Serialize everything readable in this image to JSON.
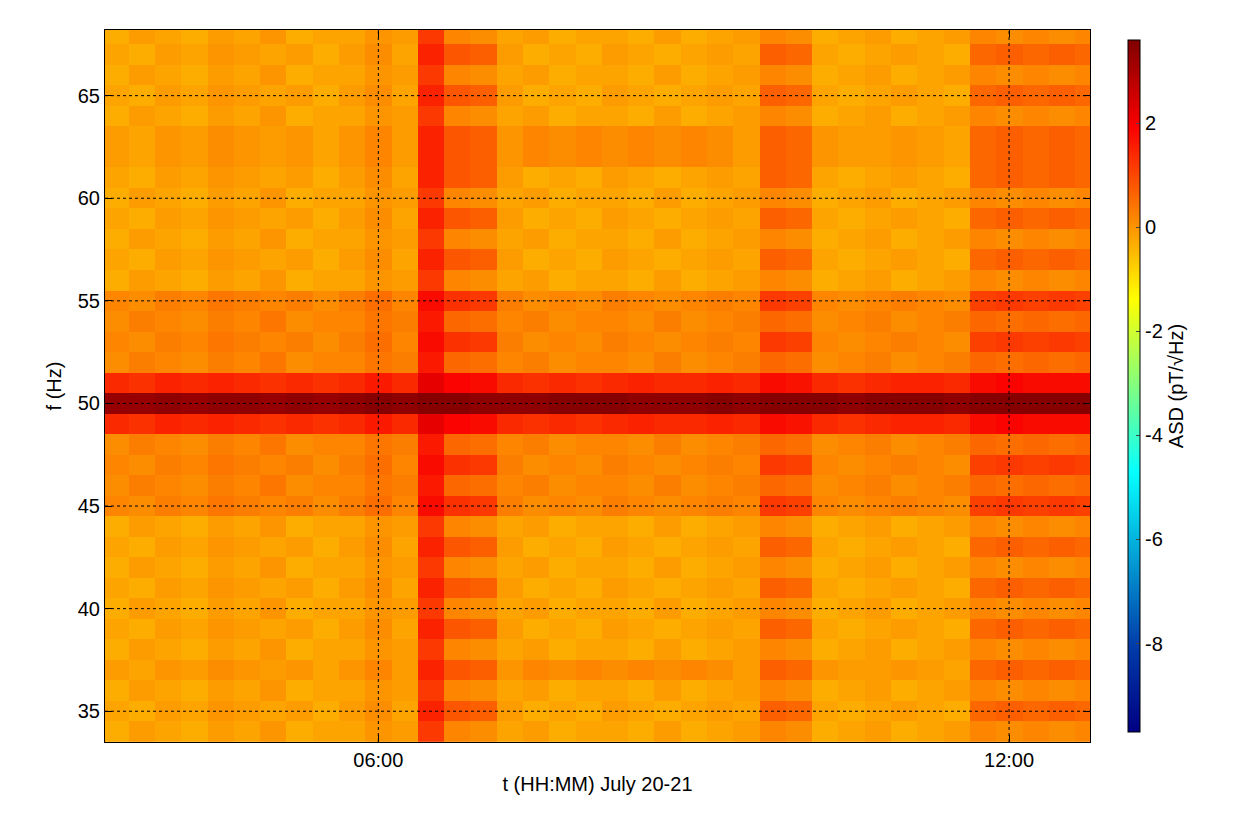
{
  "chart_data": {
    "type": "heatmap",
    "x_label": "t (HH:MM) July 20-21",
    "y_label": "f (Hz)",
    "colorbar_title": "ASD (pT/√Hz)",
    "zlim": [
      -9.7,
      3.6
    ],
    "zticks": [
      -8,
      -6,
      -4,
      -2,
      0,
      2
    ],
    "xlim": [
      3.4,
      12.77
    ],
    "xticks": [
      {
        "value": 6,
        "label": "06:00"
      },
      {
        "value": 12,
        "label": "12:00"
      }
    ],
    "ylim": [
      33.5,
      68.2
    ],
    "yticks": [
      35,
      40,
      45,
      50,
      55,
      60,
      65
    ],
    "grid": true,
    "x": [
      3.5,
      3.75,
      4.0,
      4.25,
      4.5,
      4.75,
      5.0,
      5.25,
      5.5,
      5.75,
      6.0,
      6.25,
      6.5,
      6.75,
      7.0,
      7.25,
      7.5,
      7.75,
      8.0,
      8.25,
      8.5,
      8.75,
      9.0,
      9.25,
      9.5,
      9.75,
      10.0,
      10.25,
      10.5,
      10.75,
      11.0,
      11.25,
      11.5,
      11.75,
      12.0,
      12.25,
      12.5,
      12.75
    ],
    "y": [
      34,
      35,
      36,
      37,
      38,
      39,
      40,
      41,
      42,
      43,
      44,
      45,
      46,
      47,
      48,
      49,
      50,
      51,
      52,
      53,
      54,
      55,
      56,
      57,
      58,
      59,
      60,
      61,
      62,
      63,
      64,
      65,
      66,
      67,
      68
    ],
    "z": [
      [
        -0.3,
        -0.1,
        -0.2,
        -0.3,
        -0.1,
        -0.2,
        0.0,
        -0.3,
        -0.2,
        -0.2,
        0.0,
        -0.1,
        1.2,
        0.2,
        0.1,
        -0.2,
        -0.1,
        -0.3,
        -0.2,
        -0.2,
        -0.3,
        -0.1,
        -0.3,
        -0.2,
        -0.1,
        0.2,
        0.1,
        -0.3,
        -0.2,
        -0.1,
        -0.3,
        -0.2,
        -0.1,
        0.2,
        0.1,
        0.2,
        0.1,
        0.2
      ],
      [
        -0.2,
        -0.3,
        -0.1,
        -0.2,
        0.0,
        -0.1,
        -0.2,
        -0.1,
        -0.3,
        -0.1,
        0.1,
        -0.2,
        1.5,
        0.8,
        0.7,
        -0.1,
        -0.3,
        -0.2,
        -0.3,
        -0.1,
        -0.2,
        -0.3,
        -0.2,
        -0.1,
        -0.2,
        0.7,
        0.6,
        -0.2,
        -0.3,
        -0.2,
        -0.1,
        -0.2,
        -0.3,
        0.6,
        0.7,
        0.6,
        0.7,
        0.6
      ],
      [
        -0.3,
        -0.1,
        -0.2,
        -0.3,
        -0.1,
        -0.2,
        0.0,
        -0.3,
        -0.2,
        -0.2,
        0.0,
        -0.1,
        1.2,
        0.2,
        0.1,
        -0.2,
        -0.1,
        -0.3,
        -0.2,
        -0.2,
        -0.3,
        -0.1,
        -0.3,
        -0.2,
        -0.1,
        0.2,
        0.1,
        -0.3,
        -0.2,
        -0.1,
        -0.3,
        -0.2,
        -0.1,
        0.2,
        0.1,
        0.2,
        0.1,
        0.2
      ],
      [
        -0.1,
        -0.2,
        0.0,
        -0.1,
        0.1,
        0.0,
        -0.1,
        0.0,
        -0.2,
        0.0,
        0.2,
        -0.1,
        1.5,
        0.8,
        0.7,
        0.0,
        0.2,
        0.1,
        0.2,
        0.1,
        0.2,
        0.1,
        0.2,
        0.1,
        -0.1,
        0.7,
        0.6,
        0.0,
        -0.1,
        -0.1,
        0.0,
        -0.1,
        -0.2,
        0.6,
        0.7,
        0.6,
        0.7,
        0.6
      ],
      [
        -0.3,
        -0.1,
        -0.2,
        -0.3,
        -0.1,
        -0.2,
        0.0,
        -0.3,
        -0.2,
        -0.2,
        0.0,
        -0.1,
        1.2,
        0.2,
        0.1,
        -0.2,
        -0.1,
        -0.3,
        -0.2,
        -0.2,
        -0.3,
        -0.1,
        -0.3,
        -0.2,
        -0.1,
        0.2,
        0.1,
        -0.3,
        -0.2,
        -0.1,
        -0.3,
        -0.2,
        -0.1,
        0.2,
        0.1,
        0.2,
        0.1,
        0.2
      ],
      [
        -0.2,
        -0.3,
        -0.1,
        -0.2,
        0.0,
        -0.1,
        -0.2,
        -0.1,
        -0.3,
        -0.1,
        0.1,
        -0.2,
        1.5,
        0.8,
        0.7,
        -0.1,
        -0.3,
        -0.2,
        -0.3,
        -0.1,
        -0.2,
        -0.3,
        -0.2,
        -0.1,
        -0.2,
        0.7,
        0.6,
        -0.2,
        -0.3,
        -0.2,
        -0.1,
        -0.2,
        -0.3,
        0.6,
        0.7,
        0.6,
        0.7,
        0.6
      ],
      [
        -0.3,
        -0.1,
        -0.2,
        -0.3,
        -0.1,
        -0.2,
        0.0,
        -0.3,
        -0.2,
        -0.2,
        0.0,
        -0.1,
        1.2,
        0.2,
        0.1,
        -0.2,
        -0.1,
        -0.3,
        -0.2,
        -0.2,
        -0.3,
        -0.1,
        -0.3,
        -0.2,
        -0.1,
        0.2,
        0.1,
        -0.3,
        -0.2,
        -0.1,
        -0.3,
        -0.2,
        -0.1,
        0.2,
        0.1,
        0.2,
        0.1,
        0.2
      ],
      [
        -0.2,
        -0.3,
        -0.1,
        -0.2,
        0.0,
        -0.1,
        -0.2,
        -0.1,
        -0.3,
        -0.1,
        0.1,
        -0.2,
        1.5,
        0.8,
        0.7,
        -0.1,
        -0.3,
        -0.2,
        -0.3,
        -0.1,
        -0.2,
        -0.3,
        -0.2,
        -0.1,
        -0.2,
        0.7,
        0.6,
        -0.2,
        -0.3,
        -0.2,
        -0.1,
        -0.2,
        -0.3,
        0.6,
        0.7,
        0.6,
        0.7,
        0.6
      ],
      [
        -0.3,
        -0.1,
        -0.2,
        -0.3,
        -0.1,
        -0.2,
        0.0,
        -0.3,
        -0.2,
        -0.2,
        0.0,
        -0.1,
        1.2,
        0.2,
        0.1,
        -0.2,
        -0.1,
        -0.3,
        -0.2,
        -0.2,
        -0.3,
        -0.1,
        -0.3,
        -0.2,
        -0.1,
        0.2,
        0.1,
        -0.3,
        -0.2,
        -0.1,
        -0.3,
        -0.2,
        -0.1,
        0.2,
        0.1,
        0.2,
        0.1,
        0.2
      ],
      [
        -0.2,
        -0.3,
        -0.1,
        -0.2,
        0.0,
        -0.1,
        -0.2,
        -0.1,
        -0.3,
        -0.1,
        0.1,
        -0.2,
        1.5,
        0.8,
        0.7,
        -0.1,
        -0.3,
        -0.2,
        -0.3,
        -0.1,
        -0.2,
        -0.3,
        -0.2,
        -0.1,
        -0.2,
        0.7,
        0.6,
        -0.2,
        -0.3,
        -0.2,
        -0.1,
        -0.2,
        -0.3,
        0.6,
        0.7,
        0.6,
        0.7,
        0.6
      ],
      [
        -0.3,
        -0.1,
        -0.2,
        -0.3,
        -0.1,
        -0.2,
        0.0,
        -0.3,
        -0.2,
        -0.2,
        0.0,
        -0.1,
        1.2,
        0.2,
        0.1,
        -0.2,
        -0.1,
        -0.3,
        -0.2,
        -0.2,
        -0.3,
        -0.1,
        -0.3,
        -0.2,
        -0.1,
        0.2,
        0.1,
        -0.3,
        -0.2,
        -0.1,
        -0.3,
        -0.2,
        -0.1,
        0.2,
        0.1,
        0.2,
        0.1,
        0.2
      ],
      [
        0.2,
        0.1,
        0.3,
        0.2,
        0.4,
        0.3,
        0.2,
        0.3,
        0.1,
        0.3,
        0.5,
        0.2,
        1.8,
        1.3,
        1.2,
        0.3,
        0.1,
        0.2,
        0.1,
        0.3,
        0.2,
        0.1,
        0.2,
        0.3,
        0.2,
        1.2,
        1.1,
        0.2,
        0.1,
        0.2,
        0.3,
        0.2,
        0.1,
        1.1,
        1.2,
        1.1,
        1.2,
        1.1
      ],
      [
        0.1,
        0.3,
        0.2,
        0.1,
        0.3,
        0.2,
        0.4,
        0.1,
        0.2,
        0.2,
        0.4,
        0.3,
        1.6,
        0.6,
        0.5,
        0.2,
        0.3,
        0.1,
        0.2,
        0.2,
        0.1,
        0.3,
        0.1,
        0.2,
        0.3,
        0.6,
        0.5,
        0.1,
        0.2,
        0.3,
        0.1,
        0.2,
        0.3,
        0.6,
        0.5,
        0.6,
        0.5,
        0.6
      ],
      [
        0.2,
        0.1,
        0.3,
        0.2,
        0.4,
        0.3,
        0.2,
        0.3,
        0.1,
        0.3,
        0.5,
        0.2,
        1.8,
        1.3,
        1.2,
        0.3,
        0.1,
        0.2,
        0.1,
        0.3,
        0.2,
        0.1,
        0.2,
        0.3,
        0.2,
        1.2,
        1.1,
        0.2,
        0.1,
        0.2,
        0.3,
        0.2,
        0.1,
        1.1,
        1.2,
        1.1,
        1.2,
        1.1
      ],
      [
        0.1,
        0.3,
        0.2,
        0.1,
        0.3,
        0.2,
        0.4,
        0.1,
        0.2,
        0.2,
        0.4,
        0.3,
        1.6,
        0.6,
        0.5,
        0.2,
        0.3,
        0.1,
        0.2,
        0.2,
        0.1,
        0.3,
        0.1,
        0.2,
        0.3,
        0.6,
        0.5,
        0.1,
        0.2,
        0.3,
        0.1,
        0.2,
        0.3,
        0.6,
        0.5,
        0.6,
        0.5,
        0.6
      ],
      [
        1.4,
        1.3,
        1.5,
        1.4,
        1.5,
        1.4,
        1.3,
        1.4,
        1.3,
        1.4,
        1.6,
        1.4,
        2.2,
        1.9,
        1.8,
        1.4,
        1.3,
        1.4,
        1.3,
        1.4,
        1.5,
        1.4,
        1.4,
        1.5,
        1.4,
        1.8,
        1.7,
        1.4,
        1.3,
        1.4,
        1.5,
        1.5,
        1.4,
        1.8,
        1.9,
        1.8,
        1.8,
        1.8
      ],
      [
        3.3,
        3.3,
        3.4,
        3.3,
        3.4,
        3.4,
        3.3,
        3.4,
        3.3,
        3.4,
        3.5,
        3.4,
        3.5,
        3.5,
        3.4,
        3.4,
        3.4,
        3.5,
        3.5,
        3.5,
        3.4,
        3.4,
        3.4,
        3.5,
        3.4,
        3.5,
        3.5,
        3.5,
        3.4,
        3.5,
        3.5,
        3.5,
        3.4,
        3.5,
        3.5,
        3.5,
        3.5,
        3.5
      ],
      [
        1.4,
        1.3,
        1.5,
        1.4,
        1.5,
        1.4,
        1.3,
        1.4,
        1.3,
        1.4,
        1.6,
        1.4,
        2.2,
        1.9,
        1.8,
        1.4,
        1.3,
        1.4,
        1.3,
        1.4,
        1.5,
        1.4,
        1.4,
        1.5,
        1.4,
        1.8,
        1.7,
        1.4,
        1.3,
        1.4,
        1.5,
        1.5,
        1.4,
        1.8,
        1.9,
        1.8,
        1.8,
        1.8
      ],
      [
        0.1,
        0.3,
        0.2,
        0.1,
        0.3,
        0.2,
        0.4,
        0.1,
        0.2,
        0.2,
        0.4,
        0.3,
        1.6,
        0.6,
        0.5,
        0.2,
        0.3,
        0.1,
        0.2,
        0.2,
        0.1,
        0.3,
        0.1,
        0.2,
        0.3,
        0.6,
        0.5,
        0.1,
        0.2,
        0.3,
        0.1,
        0.2,
        0.3,
        0.6,
        0.5,
        0.6,
        0.5,
        0.6
      ],
      [
        0.2,
        0.1,
        0.3,
        0.2,
        0.4,
        0.3,
        0.2,
        0.3,
        0.1,
        0.3,
        0.5,
        0.2,
        1.8,
        1.3,
        1.2,
        0.3,
        0.1,
        0.2,
        0.1,
        0.3,
        0.2,
        0.1,
        0.2,
        0.3,
        0.2,
        1.2,
        1.1,
        0.2,
        0.1,
        0.2,
        0.3,
        0.2,
        0.1,
        1.1,
        1.2,
        1.1,
        1.2,
        1.1
      ],
      [
        0.1,
        0.3,
        0.2,
        0.1,
        0.3,
        0.2,
        0.4,
        0.1,
        0.2,
        0.2,
        0.4,
        0.3,
        1.6,
        0.6,
        0.5,
        0.2,
        0.3,
        0.1,
        0.2,
        0.2,
        0.1,
        0.3,
        0.1,
        0.2,
        0.3,
        0.6,
        0.5,
        0.1,
        0.2,
        0.3,
        0.1,
        0.2,
        0.3,
        0.6,
        0.5,
        0.6,
        0.5,
        0.6
      ],
      [
        0.2,
        0.1,
        0.3,
        0.2,
        0.4,
        0.3,
        0.2,
        0.3,
        0.1,
        0.3,
        0.5,
        0.2,
        1.8,
        1.3,
        1.2,
        0.3,
        0.1,
        0.2,
        0.1,
        0.3,
        0.2,
        0.1,
        0.2,
        0.3,
        0.2,
        1.2,
        1.1,
        0.2,
        0.1,
        0.2,
        0.3,
        0.2,
        0.1,
        1.1,
        1.2,
        1.1,
        1.2,
        1.1
      ],
      [
        -0.3,
        -0.1,
        -0.2,
        -0.3,
        -0.1,
        -0.2,
        0.0,
        -0.3,
        -0.2,
        -0.2,
        0.0,
        -0.1,
        1.2,
        0.2,
        0.1,
        -0.2,
        -0.1,
        -0.3,
        -0.2,
        -0.2,
        -0.3,
        -0.1,
        -0.3,
        -0.2,
        -0.1,
        0.2,
        0.1,
        -0.3,
        -0.2,
        -0.1,
        -0.3,
        -0.2,
        -0.1,
        0.2,
        0.1,
        0.2,
        0.1,
        0.2
      ],
      [
        -0.2,
        -0.3,
        -0.1,
        -0.2,
        0.0,
        -0.1,
        -0.2,
        -0.1,
        -0.3,
        -0.1,
        0.1,
        -0.2,
        1.5,
        0.8,
        0.7,
        -0.1,
        -0.3,
        -0.2,
        -0.3,
        -0.1,
        -0.2,
        -0.3,
        -0.2,
        -0.1,
        -0.2,
        0.7,
        0.6,
        -0.2,
        -0.3,
        -0.2,
        -0.1,
        -0.2,
        -0.3,
        0.6,
        0.7,
        0.6,
        0.7,
        0.6
      ],
      [
        -0.3,
        -0.1,
        -0.2,
        -0.3,
        -0.1,
        -0.2,
        0.0,
        -0.3,
        -0.2,
        -0.2,
        0.0,
        -0.1,
        1.2,
        0.2,
        0.1,
        -0.2,
        -0.1,
        -0.3,
        -0.2,
        -0.2,
        -0.3,
        -0.1,
        -0.3,
        -0.2,
        -0.1,
        0.2,
        0.1,
        -0.3,
        -0.2,
        -0.1,
        -0.3,
        -0.2,
        -0.1,
        0.2,
        0.1,
        0.2,
        0.1,
        0.2
      ],
      [
        -0.2,
        -0.3,
        -0.1,
        -0.2,
        0.0,
        -0.1,
        -0.2,
        -0.1,
        -0.3,
        -0.1,
        0.1,
        -0.2,
        1.5,
        0.8,
        0.7,
        -0.1,
        -0.3,
        -0.2,
        -0.3,
        -0.1,
        -0.2,
        -0.3,
        -0.2,
        -0.1,
        -0.2,
        0.7,
        0.6,
        -0.2,
        -0.3,
        -0.2,
        -0.1,
        -0.2,
        -0.3,
        0.6,
        0.7,
        0.6,
        0.7,
        0.6
      ],
      [
        -0.3,
        -0.1,
        -0.2,
        -0.3,
        -0.1,
        -0.2,
        0.0,
        -0.3,
        -0.2,
        -0.2,
        0.0,
        -0.1,
        1.2,
        0.2,
        0.1,
        -0.2,
        -0.1,
        -0.3,
        -0.2,
        -0.2,
        -0.3,
        -0.1,
        -0.3,
        -0.2,
        -0.1,
        0.2,
        0.1,
        -0.3,
        -0.2,
        -0.1,
        -0.3,
        -0.2,
        -0.1,
        0.2,
        0.1,
        0.2,
        0.1,
        0.2
      ],
      [
        -0.2,
        -0.3,
        -0.1,
        -0.2,
        0.0,
        -0.1,
        -0.2,
        -0.1,
        -0.3,
        -0.1,
        0.1,
        -0.2,
        1.5,
        0.8,
        0.7,
        -0.1,
        -0.3,
        -0.2,
        -0.3,
        -0.1,
        -0.2,
        -0.3,
        -0.2,
        -0.1,
        -0.2,
        0.7,
        0.6,
        -0.2,
        -0.3,
        -0.2,
        -0.1,
        -0.2,
        -0.3,
        0.6,
        0.7,
        0.6,
        0.7,
        0.6
      ],
      [
        -0.1,
        -0.2,
        0.0,
        -0.1,
        0.1,
        0.0,
        -0.1,
        0.0,
        -0.2,
        0.0,
        0.2,
        -0.1,
        1.5,
        0.8,
        0.7,
        0.0,
        0.2,
        0.1,
        0.2,
        0.1,
        0.2,
        0.1,
        0.2,
        0.1,
        -0.1,
        0.7,
        0.6,
        0.0,
        -0.1,
        -0.1,
        0.0,
        -0.1,
        -0.2,
        0.6,
        0.7,
        0.6,
        0.7,
        0.6
      ],
      [
        -0.1,
        -0.2,
        0.0,
        -0.1,
        0.1,
        0.0,
        -0.1,
        0.0,
        -0.2,
        0.0,
        0.2,
        -0.1,
        1.5,
        0.8,
        0.7,
        0.0,
        0.2,
        0.1,
        0.2,
        0.1,
        0.2,
        0.1,
        0.2,
        0.1,
        -0.1,
        0.7,
        0.6,
        0.0,
        -0.1,
        -0.1,
        0.0,
        -0.1,
        -0.2,
        0.6,
        0.7,
        0.6,
        0.7,
        0.6
      ],
      [
        -0.3,
        -0.1,
        -0.2,
        -0.3,
        -0.1,
        -0.2,
        0.0,
        -0.3,
        -0.2,
        -0.2,
        0.0,
        -0.1,
        1.2,
        0.2,
        0.1,
        -0.2,
        -0.1,
        -0.3,
        -0.2,
        -0.2,
        -0.3,
        -0.1,
        -0.3,
        -0.2,
        -0.1,
        0.2,
        0.1,
        -0.3,
        -0.2,
        -0.1,
        -0.3,
        -0.2,
        -0.1,
        0.2,
        0.1,
        0.2,
        0.1,
        0.2
      ],
      [
        -0.2,
        -0.3,
        -0.1,
        -0.2,
        0.0,
        -0.1,
        -0.2,
        -0.1,
        -0.3,
        -0.1,
        0.1,
        -0.2,
        1.5,
        0.8,
        0.7,
        -0.1,
        -0.3,
        -0.2,
        -0.3,
        -0.1,
        -0.2,
        -0.3,
        -0.2,
        -0.1,
        -0.2,
        0.7,
        0.6,
        -0.2,
        -0.3,
        -0.2,
        -0.1,
        -0.2,
        -0.3,
        0.6,
        0.7,
        0.6,
        0.7,
        0.6
      ],
      [
        -0.3,
        -0.1,
        -0.2,
        -0.3,
        -0.1,
        -0.2,
        0.0,
        -0.3,
        -0.2,
        -0.2,
        0.0,
        -0.1,
        1.2,
        0.2,
        0.1,
        -0.2,
        -0.1,
        -0.3,
        -0.2,
        -0.2,
        -0.3,
        -0.1,
        -0.3,
        -0.2,
        -0.1,
        0.2,
        0.1,
        -0.3,
        -0.2,
        -0.1,
        -0.3,
        -0.2,
        -0.1,
        0.2,
        0.1,
        0.2,
        0.1,
        0.2
      ],
      [
        -0.2,
        -0.3,
        -0.1,
        -0.2,
        0.0,
        -0.1,
        -0.2,
        -0.1,
        -0.3,
        -0.1,
        0.1,
        -0.2,
        1.5,
        0.8,
        0.7,
        -0.1,
        -0.3,
        -0.2,
        -0.3,
        -0.1,
        -0.2,
        -0.3,
        -0.2,
        -0.1,
        -0.2,
        0.7,
        0.6,
        -0.2,
        -0.3,
        -0.2,
        -0.1,
        -0.2,
        -0.3,
        0.6,
        0.7,
        0.6,
        0.7,
        0.6
      ],
      [
        -0.3,
        -0.1,
        -0.2,
        -0.3,
        -0.1,
        -0.2,
        0.0,
        -0.3,
        -0.2,
        -0.2,
        0.0,
        -0.1,
        1.2,
        0.2,
        0.1,
        -0.2,
        -0.1,
        -0.3,
        -0.2,
        -0.2,
        -0.3,
        -0.1,
        -0.3,
        -0.2,
        -0.1,
        0.2,
        0.1,
        -0.3,
        -0.2,
        -0.1,
        -0.3,
        -0.2,
        -0.1,
        0.2,
        0.1,
        0.2,
        0.1,
        0.2
      ]
    ]
  }
}
